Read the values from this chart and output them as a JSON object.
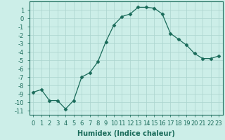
{
  "title": "",
  "xlabel": "Humidex (Indice chaleur)",
  "x": [
    0,
    1,
    2,
    3,
    4,
    5,
    6,
    7,
    8,
    9,
    10,
    11,
    12,
    13,
    14,
    15,
    16,
    17,
    18,
    19,
    20,
    21,
    22,
    23
  ],
  "y": [
    -8.8,
    -8.5,
    -9.8,
    -9.8,
    -10.8,
    -9.8,
    -7.0,
    -6.5,
    -5.2,
    -2.8,
    -0.8,
    0.2,
    0.5,
    1.3,
    1.3,
    1.2,
    0.5,
    -1.8,
    -2.5,
    -3.2,
    -4.2,
    -4.8,
    -4.8,
    -4.5
  ],
  "line_color": "#1a6b5a",
  "marker": "D",
  "marker_size": 2.5,
  "bg_color": "#cceee8",
  "grid_color": "#aad4ce",
  "ylim": [
    -11.5,
    2.0
  ],
  "xlim": [
    -0.5,
    23.5
  ],
  "yticks": [
    1,
    0,
    -1,
    -2,
    -3,
    -4,
    -5,
    -6,
    -7,
    -8,
    -9,
    -10,
    -11
  ],
  "xticks": [
    0,
    1,
    2,
    3,
    4,
    5,
    6,
    7,
    8,
    9,
    10,
    11,
    12,
    13,
    14,
    15,
    16,
    17,
    18,
    19,
    20,
    21,
    22,
    23
  ],
  "label_fontsize": 7,
  "tick_fontsize": 6
}
